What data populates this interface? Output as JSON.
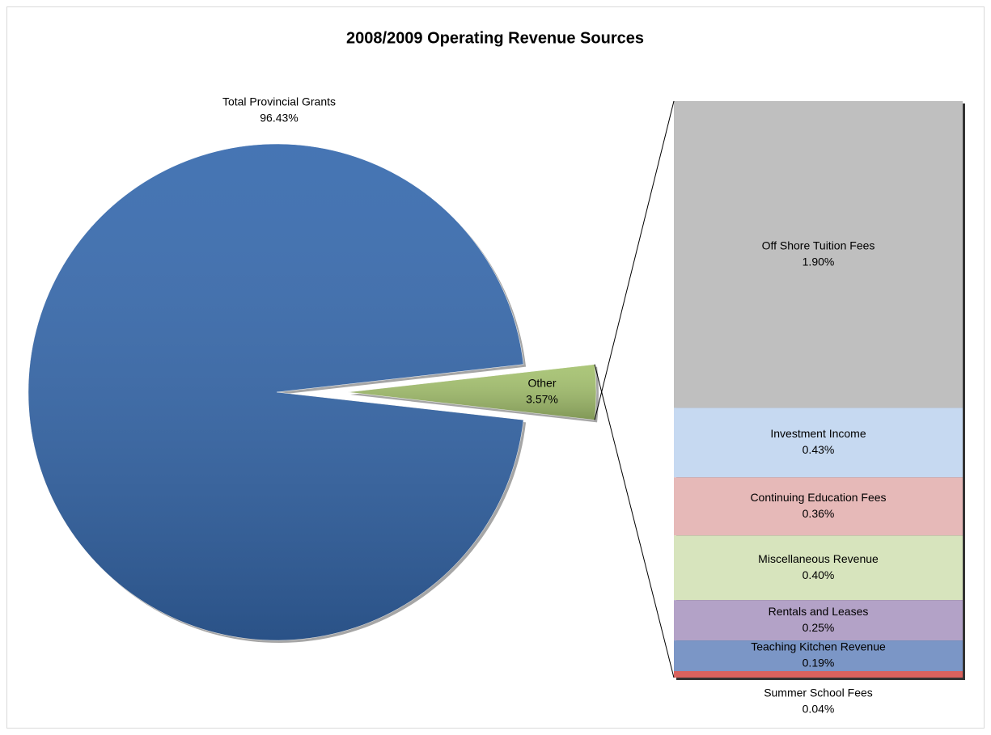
{
  "chart_data": {
    "type": "bar-of-pie",
    "title": "2008/2009 Operating Revenue Sources",
    "categories": [
      "Total Provincial Grants",
      "Other"
    ],
    "values": [
      96.43,
      3.57
    ],
    "value_labels": [
      "96.43%",
      "3.57%"
    ],
    "colors": [
      "#3669ad",
      "#a5c26f"
    ],
    "breakdown": {
      "categories": [
        "Off Shore Tuition Fees",
        "Investment Income",
        "Continuing Education Fees",
        "Miscellaneous Revenue",
        "Rentals and Leases",
        "Teaching Kitchen Revenue",
        "Summer School Fees"
      ],
      "values": [
        1.9,
        0.43,
        0.36,
        0.4,
        0.25,
        0.19,
        0.04
      ],
      "value_labels": [
        "1.90%",
        "0.43%",
        "0.36%",
        "0.40%",
        "0.25%",
        "0.19%",
        "0.04%"
      ],
      "colors": [
        "#bfbfbf",
        "#c6d9f1",
        "#e6b9b8",
        "#d7e4bd",
        "#b3a2c7",
        "#7b96c6",
        "#d9625e"
      ]
    }
  }
}
